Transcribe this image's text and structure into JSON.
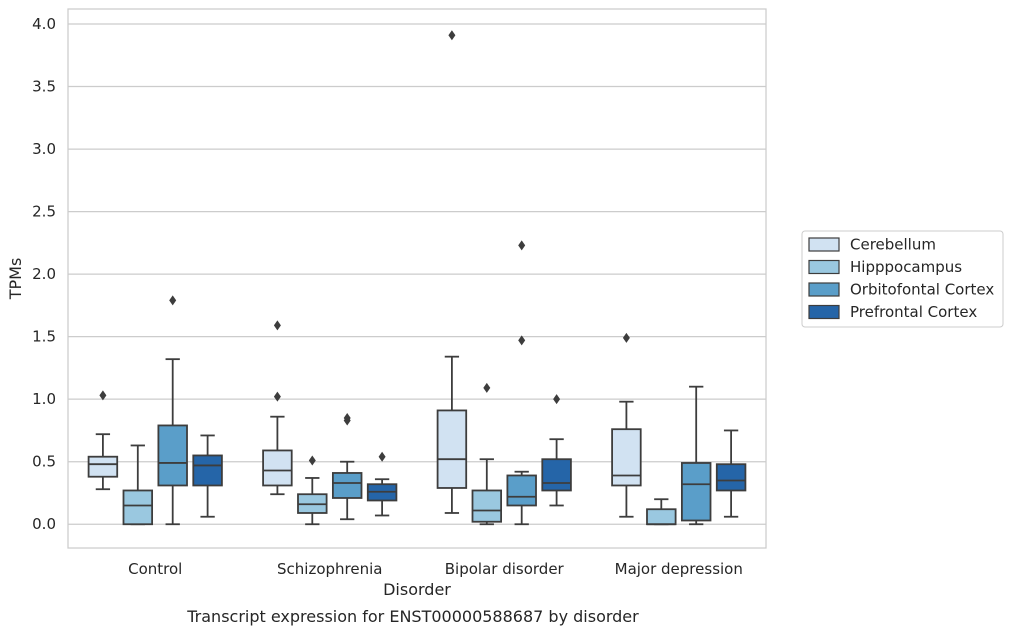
{
  "chart_data": {
    "type": "boxplot",
    "caption": "Transcript expression for ENST00000588687 by disorder",
    "xlabel": "Disorder",
    "ylabel": "TPMs",
    "ylim": [
      -0.19,
      4.12
    ],
    "yticks": [
      0.0,
      0.5,
      1.0,
      1.5,
      2.0,
      2.5,
      3.0,
      3.5,
      4.0
    ],
    "ytick_labels": [
      "0.0",
      "0.5",
      "1.0",
      "1.5",
      "2.0",
      "2.5",
      "3.0",
      "3.5",
      "4.0"
    ],
    "grid": "horizontal",
    "legend_position": "right",
    "categories": [
      "Control",
      "Schizophrenia",
      "Bipolar disorder",
      "Major depression"
    ],
    "series": [
      {
        "name": "Cerebellum",
        "color": "#d1e2f2",
        "boxes": [
          {
            "whislo": 0.28,
            "q1": 0.38,
            "med": 0.48,
            "q3": 0.54,
            "whishi": 0.72,
            "fliers": [
              1.03
            ]
          },
          {
            "whislo": 0.24,
            "q1": 0.31,
            "med": 0.43,
            "q3": 0.59,
            "whishi": 0.86,
            "fliers": [
              1.02,
              1.59
            ]
          },
          {
            "whislo": 0.09,
            "q1": 0.29,
            "med": 0.52,
            "q3": 0.91,
            "whishi": 1.34,
            "fliers": [
              3.91
            ]
          },
          {
            "whislo": 0.06,
            "q1": 0.31,
            "med": 0.39,
            "q3": 0.76,
            "whishi": 0.98,
            "fliers": [
              1.49
            ]
          }
        ]
      },
      {
        "name": "Hipppocampus",
        "color": "#9ac8e0",
        "boxes": [
          {
            "whislo": 0.0,
            "q1": 0.0,
            "med": 0.15,
            "q3": 0.27,
            "whishi": 0.63,
            "fliers": []
          },
          {
            "whislo": 0.0,
            "q1": 0.09,
            "med": 0.16,
            "q3": 0.24,
            "whishi": 0.37,
            "fliers": [
              0.51
            ]
          },
          {
            "whislo": 0.0,
            "q1": 0.02,
            "med": 0.11,
            "q3": 0.27,
            "whishi": 0.52,
            "fliers": [
              1.09
            ]
          },
          {
            "whislo": 0.0,
            "q1": 0.0,
            "med": 0.0,
            "q3": 0.12,
            "whishi": 0.2,
            "fliers": []
          }
        ]
      },
      {
        "name": "Orbitofontal Cortex",
        "color": "#5a9ec9",
        "boxes": [
          {
            "whislo": 0.0,
            "q1": 0.31,
            "med": 0.49,
            "q3": 0.79,
            "whishi": 1.32,
            "fliers": [
              1.79
            ]
          },
          {
            "whislo": 0.04,
            "q1": 0.21,
            "med": 0.33,
            "q3": 0.41,
            "whishi": 0.5,
            "fliers": [
              0.83,
              0.85
            ]
          },
          {
            "whislo": 0.0,
            "q1": 0.15,
            "med": 0.22,
            "q3": 0.39,
            "whishi": 0.42,
            "fliers": [
              1.47,
              2.23
            ]
          },
          {
            "whislo": 0.0,
            "q1": 0.03,
            "med": 0.32,
            "q3": 0.49,
            "whishi": 1.1,
            "fliers": []
          }
        ]
      },
      {
        "name": "Prefrontal Cortex",
        "color": "#2565a8",
        "boxes": [
          {
            "whislo": 0.06,
            "q1": 0.31,
            "med": 0.47,
            "q3": 0.55,
            "whishi": 0.71,
            "fliers": []
          },
          {
            "whislo": 0.07,
            "q1": 0.19,
            "med": 0.26,
            "q3": 0.32,
            "whishi": 0.36,
            "fliers": [
              0.54
            ]
          },
          {
            "whislo": 0.15,
            "q1": 0.27,
            "med": 0.33,
            "q3": 0.52,
            "whishi": 0.68,
            "fliers": [
              1.0
            ]
          },
          {
            "whislo": 0.06,
            "q1": 0.27,
            "med": 0.35,
            "q3": 0.48,
            "whishi": 0.75,
            "fliers": []
          }
        ]
      }
    ]
  }
}
